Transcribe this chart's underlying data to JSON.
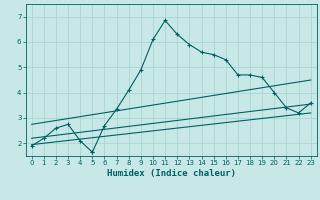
{
  "xlabel": "Humidex (Indice chaleur)",
  "xlim": [
    -0.5,
    23.5
  ],
  "ylim": [
    1.5,
    7.5
  ],
  "xticks": [
    0,
    1,
    2,
    3,
    4,
    5,
    6,
    7,
    8,
    9,
    10,
    11,
    12,
    13,
    14,
    15,
    16,
    17,
    18,
    19,
    20,
    21,
    22,
    23
  ],
  "yticks": [
    2,
    3,
    4,
    5,
    6,
    7
  ],
  "bg_color": "#c8e8e8",
  "line_color": "#006060",
  "grid_color": "#b0d8d8",
  "series1_x": [
    0,
    1,
    2,
    3,
    4,
    5,
    5,
    6,
    7,
    8,
    9,
    10,
    11,
    12,
    13,
    14,
    15,
    16,
    17,
    18,
    19,
    20,
    21,
    22,
    23
  ],
  "series1_y": [
    1.9,
    2.2,
    2.6,
    2.75,
    2.1,
    1.65,
    1.65,
    2.7,
    3.35,
    4.1,
    4.9,
    6.1,
    6.85,
    6.3,
    5.9,
    5.6,
    5.5,
    5.3,
    4.7,
    4.7,
    4.6,
    4.0,
    3.4,
    3.2,
    3.6
  ],
  "series2_x": [
    0,
    23
  ],
  "series2_y": [
    2.75,
    4.5
  ],
  "series3_x": [
    0,
    23
  ],
  "series3_y": [
    2.2,
    3.55
  ],
  "series4_x": [
    0,
    23
  ],
  "series4_y": [
    1.95,
    3.2
  ]
}
